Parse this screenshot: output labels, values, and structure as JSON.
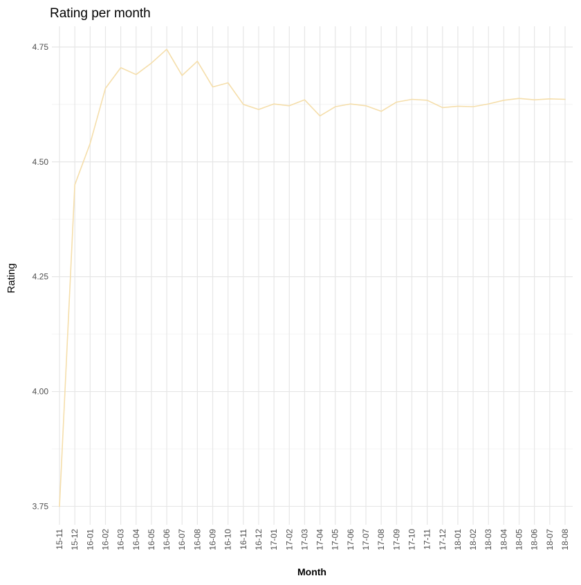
{
  "chart_data": {
    "type": "line",
    "title": "Rating per month",
    "xlabel": "Month",
    "ylabel": "Rating",
    "categories": [
      "15-11",
      "15-12",
      "16-01",
      "16-02",
      "16-03",
      "16-04",
      "16-05",
      "16-06",
      "16-07",
      "16-08",
      "16-09",
      "16-10",
      "16-11",
      "16-12",
      "17-01",
      "17-02",
      "17-03",
      "17-04",
      "17-05",
      "17-06",
      "17-07",
      "17-08",
      "17-09",
      "17-10",
      "17-11",
      "17-12",
      "18-01",
      "18-02",
      "18-03",
      "18-04",
      "18-05",
      "18-06",
      "18-07",
      "18-08"
    ],
    "series": [
      {
        "values": [
          3.75,
          4.45,
          4.54,
          4.66,
          4.705,
          4.69,
          4.715,
          4.745,
          4.688,
          4.719,
          4.663,
          4.672,
          4.625,
          4.614,
          4.626,
          4.622,
          4.635,
          4.6,
          4.62,
          4.626,
          4.622,
          4.61,
          4.63,
          4.636,
          4.634,
          4.618,
          4.621,
          4.62,
          4.626,
          4.634,
          4.638,
          4.635,
          4.637,
          4.636
        ]
      }
    ],
    "ylim": [
      3.71,
      4.795
    ],
    "yticks": [
      "3.75",
      "4.00",
      "4.25",
      "4.50",
      "4.75"
    ],
    "grid": true,
    "colors": {
      "line": "#f5deaa",
      "grid_major": "#e6e6e6",
      "grid_minor": "#f2f2f2",
      "tick_text": "#4d4d4d"
    }
  }
}
